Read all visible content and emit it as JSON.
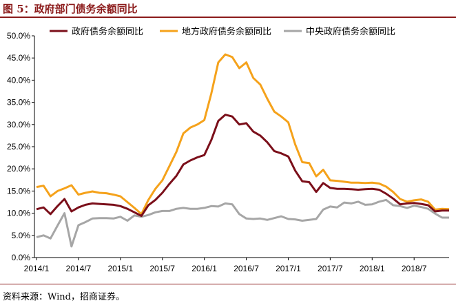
{
  "title": "图 5：政府部门债务余额同比",
  "source": "资料来源：Wind，招商证券。",
  "colors": {
    "accent": "#8b1a1a",
    "series1": "#7b0f1a",
    "series2": "#f5a21b",
    "series3": "#a6a6a6",
    "axis": "#000000"
  },
  "chart_data": {
    "type": "line",
    "xlabel": "",
    "ylabel": "",
    "ylim": [
      0,
      50
    ],
    "yticks": [
      "0.0%",
      "5.0%",
      "10.0%",
      "15.0%",
      "20.0%",
      "25.0%",
      "30.0%",
      "35.0%",
      "40.0%",
      "45.0%",
      "50.0%"
    ],
    "xticks": [
      "2014/1",
      "2014/7",
      "2015/1",
      "2015/7",
      "2016/1",
      "2016/7",
      "2017/1",
      "2017/7",
      "2018/1",
      "2018/7"
    ],
    "grid": false,
    "legend_position": "top",
    "x": [
      "2014/1",
      "2014/2",
      "2014/3",
      "2014/4",
      "2014/5",
      "2014/6",
      "2014/7",
      "2014/8",
      "2014/9",
      "2014/10",
      "2014/11",
      "2014/12",
      "2015/1",
      "2015/2",
      "2015/3",
      "2015/4",
      "2015/5",
      "2015/6",
      "2015/7",
      "2015/8",
      "2015/9",
      "2015/10",
      "2015/11",
      "2015/12",
      "2016/1",
      "2016/2",
      "2016/3",
      "2016/4",
      "2016/5",
      "2016/6",
      "2016/7",
      "2016/8",
      "2016/9",
      "2016/10",
      "2016/11",
      "2016/12",
      "2017/1",
      "2017/2",
      "2017/3",
      "2017/4",
      "2017/5",
      "2017/6",
      "2017/7",
      "2017/8",
      "2017/9",
      "2017/10",
      "2017/11",
      "2017/12",
      "2018/1",
      "2018/2",
      "2018/3",
      "2018/4",
      "2018/5",
      "2018/6",
      "2018/7",
      "2018/8",
      "2018/9",
      "2018/10",
      "2018/11",
      "2018/12"
    ],
    "series": [
      {
        "name": "政府债务余额同比",
        "values": [
          10.9,
          11.3,
          9.8,
          11.6,
          13.2,
          10.4,
          11.3,
          11.9,
          12.2,
          12.1,
          12.0,
          11.9,
          11.6,
          11.0,
          10.2,
          9.4,
          11.8,
          13.0,
          14.6,
          16.6,
          18.4,
          21.0,
          21.9,
          22.6,
          23.1,
          26.5,
          30.8,
          32.2,
          31.8,
          30.0,
          30.3,
          28.4,
          27.5,
          26.0,
          24.0,
          23.5,
          22.8,
          19.6,
          17.2,
          17.0,
          14.8,
          16.8,
          15.7,
          15.5,
          15.5,
          15.4,
          15.3,
          15.4,
          15.5,
          15.3,
          14.4,
          13.3,
          12.0,
          12.2,
          12.3,
          12.1,
          11.8,
          10.4,
          10.6,
          10.6
        ]
      },
      {
        "name": "地方政府债务余额同比",
        "values": [
          15.9,
          16.2,
          13.8,
          15.0,
          15.6,
          16.3,
          14.2,
          14.6,
          14.9,
          14.6,
          14.5,
          14.2,
          13.8,
          12.5,
          11.2,
          9.8,
          13.0,
          15.5,
          17.4,
          20.6,
          23.8,
          28.0,
          29.3,
          30.0,
          31.0,
          37.0,
          44.0,
          45.8,
          45.2,
          42.7,
          44.0,
          40.5,
          39.0,
          35.8,
          32.9,
          31.8,
          30.5,
          25.5,
          21.5,
          21.3,
          18.3,
          19.8,
          17.4,
          17.3,
          17.1,
          16.9,
          16.9,
          16.8,
          16.9,
          16.7,
          16.0,
          14.8,
          13.2,
          12.6,
          12.9,
          13.1,
          12.6,
          10.8,
          11.0,
          10.9
        ]
      },
      {
        "name": "中央政府债务余额同比",
        "values": [
          4.6,
          5.0,
          4.3,
          7.2,
          10.0,
          2.5,
          7.3,
          8.0,
          8.8,
          8.9,
          8.9,
          8.8,
          9.2,
          8.3,
          9.5,
          9.2,
          9.6,
          10.2,
          10.5,
          10.5,
          11.0,
          11.2,
          11.0,
          11.0,
          11.2,
          11.6,
          11.5,
          12.2,
          12.0,
          9.8,
          8.8,
          8.7,
          8.8,
          8.5,
          8.9,
          9.3,
          8.7,
          8.6,
          8.3,
          8.5,
          8.7,
          10.8,
          11.5,
          11.3,
          12.4,
          12.2,
          12.6,
          11.9,
          12.0,
          12.6,
          13.0,
          11.8,
          11.6,
          11.2,
          11.7,
          11.4,
          11.0,
          9.9,
          9.0,
          9.0
        ]
      }
    ]
  }
}
